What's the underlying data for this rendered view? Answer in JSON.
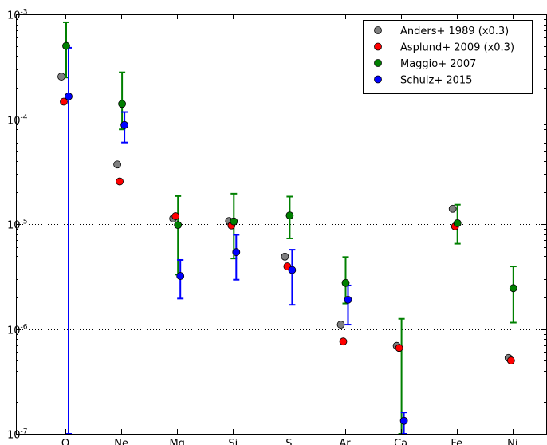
{
  "chart_data": {
    "type": "scatter",
    "categories": [
      "O",
      "Ne",
      "Mg",
      "Si",
      "S",
      "Ar",
      "Ca",
      "Fe",
      "Ni"
    ],
    "y_scale": "log",
    "ylim": [
      1e-07,
      0.001
    ],
    "y_ticks": [
      {
        "value": 1e-07,
        "base": "10",
        "exp": "-7"
      },
      {
        "value": 1e-06,
        "base": "10",
        "exp": "-6"
      },
      {
        "value": 1e-05,
        "base": "10",
        "exp": "-5"
      },
      {
        "value": 0.0001,
        "base": "10",
        "exp": "-4"
      },
      {
        "value": 0.001,
        "base": "10",
        "exp": "-3"
      }
    ],
    "grid": "horizontal dotted",
    "legend_position": "top-right",
    "series": [
      {
        "name": "Anders+ 1989 (x0.3)",
        "color": "#808080",
        "values": [
          0.000255,
          3.7e-05,
          1.13e-05,
          1.07e-05,
          4.9e-06,
          1.1e-06,
          6.9e-07,
          1.4e-05,
          5.3e-07
        ]
      },
      {
        "name": "Asplund+ 2009 (x0.3)",
        "color": "#ff0000",
        "values": [
          0.000147,
          2.55e-05,
          1.19e-05,
          9.7e-06,
          3.95e-06,
          7.6e-07,
          6.6e-07,
          9.5e-06,
          5e-07
        ]
      },
      {
        "name": "Maggio+ 2007",
        "color": "#008000",
        "values": [
          0.0005,
          0.00014,
          9.8e-06,
          1.06e-05,
          1.21e-05,
          2.75e-06,
          null,
          1.02e-05,
          2.45e-06
        ],
        "err_low": [
          0.00025,
          8e-05,
          3.3e-06,
          4.7e-06,
          7.3e-06,
          1.75e-06,
          1e-07,
          6.5e-06,
          1.15e-06
        ],
        "err_high": [
          0.00084,
          0.00028,
          1.85e-05,
          1.95e-05,
          1.83e-05,
          4.85e-06,
          1.25e-06,
          1.53e-05,
          3.95e-06
        ]
      },
      {
        "name": "Schulz+ 2015",
        "color": "#0000ff",
        "values": [
          0.000165,
          8.8e-05,
          3.2e-06,
          5.4e-06,
          3.65e-06,
          1.9e-06,
          1.33e-07,
          null,
          null
        ],
        "err_low": [
          1e-07,
          6e-05,
          1.95e-06,
          2.95e-06,
          1.7e-06,
          1.1e-06,
          1e-07,
          null,
          null
        ],
        "err_high": [
          0.00048,
          0.000117,
          4.55e-06,
          7.9e-06,
          5.7e-06,
          2.6e-06,
          1.6e-07,
          null,
          null
        ]
      }
    ]
  }
}
